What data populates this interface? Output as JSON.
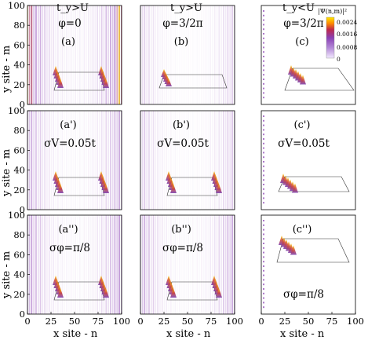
{
  "figure": {
    "column_headers": [
      "t_y>U",
      "t_y>U",
      "t_y<U"
    ],
    "y_axis_label": "y site - m",
    "x_axis_label": "x site - n",
    "y_ticks": [
      "0",
      "20",
      "40",
      "60",
      "80",
      "100"
    ],
    "x_ticks": [
      "0",
      "25",
      "50",
      "75",
      "100"
    ],
    "panels": [
      {
        "id": "a",
        "label": "(a)",
        "param": "φ=0",
        "style": "stripes",
        "stripe_density": 1.0,
        "plane": "wide",
        "edge_peaks": "both"
      },
      {
        "id": "b",
        "label": "(b)",
        "param": "φ=3/2π",
        "style": "stripes",
        "stripe_density": 0.35,
        "plane": "short",
        "edge_peaks": "left"
      },
      {
        "id": "c",
        "label": "(c)",
        "param": "φ=3/2π",
        "style": "leftdots",
        "stripe_density": 0.2,
        "plane": "skew",
        "edge_peaks": "cluster"
      },
      {
        "id": "a1",
        "label": "(a')",
        "param": "σV=0.05t",
        "style": "stripes",
        "stripe_density": 0.6,
        "plane": "wide",
        "edge_peaks": "both"
      },
      {
        "id": "b1",
        "label": "(b')",
        "param": "σV=0.05t",
        "style": "stripes",
        "stripe_density": 0.4,
        "plane": "wide",
        "edge_peaks": "both"
      },
      {
        "id": "c1",
        "label": "(c')",
        "param": "σV=0.05t",
        "style": "leftdots",
        "stripe_density": 0.2,
        "plane": "skew",
        "edge_peaks": "cluster"
      },
      {
        "id": "a2",
        "label": "(a'')",
        "param": "σφ=π/8",
        "style": "stripes",
        "stripe_density": 0.7,
        "plane": "wide",
        "edge_peaks": "both"
      },
      {
        "id": "b2",
        "label": "(b'')",
        "param": "σφ=π/8",
        "style": "stripes",
        "stripe_density": 0.6,
        "plane": "wide",
        "edge_peaks": "both"
      },
      {
        "id": "c2",
        "label": "(c'')",
        "param": "σφ=π/8",
        "style": "leftdots",
        "stripe_density": 0.2,
        "plane": "skew",
        "edge_peaks": "cluster"
      }
    ],
    "colorbar": {
      "title": "|Ψ(n,m)|²",
      "ticks": [
        "0",
        "0.0008",
        "0.0016",
        "0.0024"
      ],
      "range": [
        0,
        0.0028
      ],
      "colors": [
        "#f2eaff",
        "#b48ad8",
        "#8a3fb4",
        "#c0284a",
        "#ff8a00",
        "#ffe500"
      ]
    }
  }
}
